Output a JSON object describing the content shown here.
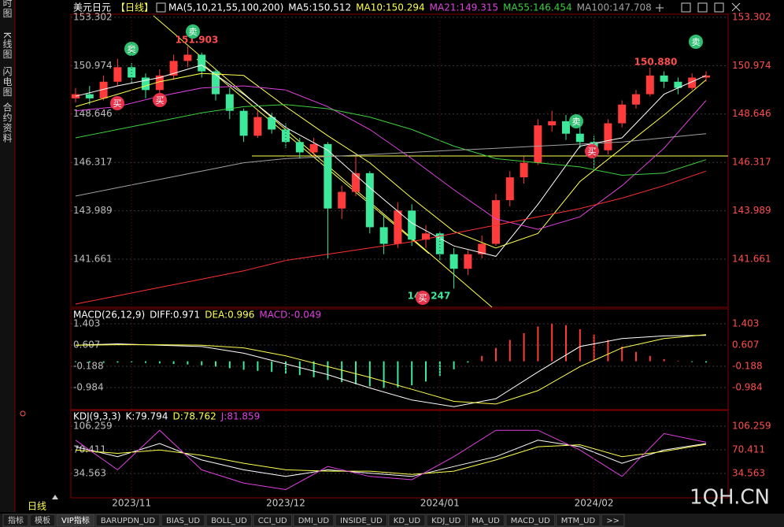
{
  "sidebar": [
    "分时图",
    "K线图",
    "闪电图",
    "合约资料"
  ],
  "header": {
    "symbol": "美元日元",
    "period": "【日线】",
    "ma_title": "MA(5,10,21,55,100,200)",
    "ma_values": [
      "MA5:150.512",
      "MA10:150.294",
      "MA21:149.315",
      "MA55:146.454",
      "MA100:147.708"
    ]
  },
  "main": {
    "type": "candlestick",
    "ylim": [
      139.35,
      153.45
    ],
    "yticks": [
      153.302,
      150.974,
      148.646,
      146.317,
      143.989,
      141.661
    ],
    "candles": [
      [
        149.4,
        149.9,
        149.2,
        149.6
      ],
      [
        149.6,
        150.0,
        149.1,
        149.4
      ],
      [
        149.4,
        150.5,
        149.3,
        150.2
      ],
      [
        150.2,
        151.3,
        150.0,
        150.9
      ],
      [
        150.9,
        151.1,
        150.1,
        150.4
      ],
      [
        150.4,
        150.6,
        149.4,
        149.8
      ],
      [
        149.8,
        150.8,
        149.6,
        150.5
      ],
      [
        150.5,
        151.5,
        150.3,
        151.2
      ],
      [
        151.2,
        151.903,
        150.9,
        151.5
      ],
      [
        151.5,
        151.6,
        150.4,
        150.7
      ],
      [
        150.7,
        150.8,
        149.3,
        149.6
      ],
      [
        149.6,
        149.9,
        148.4,
        148.8
      ],
      [
        148.8,
        148.9,
        147.3,
        147.6
      ],
      [
        147.6,
        148.8,
        147.5,
        148.5
      ],
      [
        148.5,
        148.7,
        147.7,
        147.9
      ],
      [
        147.9,
        148.2,
        147.0,
        147.3
      ],
      [
        147.3,
        147.5,
        146.5,
        146.8
      ],
      [
        146.8,
        147.5,
        146.6,
        147.2
      ],
      [
        147.2,
        147.3,
        141.7,
        144.1
      ],
      [
        144.1,
        145.2,
        143.6,
        144.9
      ],
      [
        144.9,
        146.6,
        144.7,
        145.8
      ],
      [
        145.8,
        145.9,
        142.9,
        143.2
      ],
      [
        143.2,
        143.8,
        141.9,
        142.4
      ],
      [
        142.4,
        144.4,
        142.2,
        144.0
      ],
      [
        144.0,
        144.3,
        142.3,
        142.6
      ],
      [
        142.6,
        143.3,
        142.2,
        142.9
      ],
      [
        142.9,
        143.0,
        141.6,
        141.9
      ],
      [
        141.9,
        142.2,
        140.247,
        141.2
      ],
      [
        141.2,
        142.1,
        140.9,
        141.9
      ],
      [
        141.9,
        142.8,
        141.7,
        142.4
      ],
      [
        142.4,
        144.8,
        142.3,
        144.5
      ],
      [
        144.5,
        145.9,
        144.2,
        145.6
      ],
      [
        145.6,
        146.6,
        145.3,
        146.3
      ],
      [
        146.3,
        148.4,
        146.2,
        148.1
      ],
      [
        148.1,
        148.8,
        147.8,
        148.3
      ],
      [
        148.3,
        148.6,
        147.4,
        147.7
      ],
      [
        147.7,
        148.1,
        147.0,
        147.3
      ],
      [
        147.3,
        147.6,
        146.0,
        146.9
      ],
      [
        146.9,
        148.4,
        146.7,
        148.2
      ],
      [
        148.2,
        149.3,
        148.0,
        149.1
      ],
      [
        149.1,
        149.8,
        148.9,
        149.6
      ],
      [
        149.6,
        150.88,
        149.5,
        150.5
      ],
      [
        150.5,
        150.7,
        149.9,
        150.2
      ],
      [
        150.2,
        150.4,
        149.6,
        149.9
      ],
      [
        149.9,
        150.6,
        149.8,
        150.4
      ],
      [
        150.4,
        150.7,
        150.2,
        150.5
      ]
    ],
    "up_color": "#ff3b3b",
    "down_color": "#3ee89a",
    "ma_index": [
      0,
      3,
      6,
      9,
      12,
      15,
      18,
      21,
      24,
      27,
      30,
      33,
      36,
      39,
      42,
      45
    ],
    "series": [
      {
        "name": "MA5",
        "color": "#ffffff",
        "values": [
          149.5,
          150.0,
          150.4,
          151.0,
          149.6,
          148.0,
          146.9,
          145.1,
          143.4,
          142.3,
          141.8,
          144.3,
          147.1,
          147.5,
          149.6,
          150.5
        ]
      },
      {
        "name": "MA10",
        "color": "#ffff4d",
        "values": [
          149.0,
          149.6,
          150.2,
          150.6,
          150.5,
          149.0,
          147.6,
          146.3,
          144.6,
          143.0,
          142.2,
          142.9,
          145.4,
          147.0,
          148.6,
          150.29
        ]
      },
      {
        "name": "MA21",
        "color": "#e040e0",
        "values": [
          148.8,
          149.0,
          149.5,
          149.9,
          150.0,
          149.8,
          149.0,
          147.9,
          146.5,
          145.0,
          143.6,
          143.1,
          143.7,
          145.2,
          147.0,
          149.3
        ]
      },
      {
        "name": "MA55",
        "color": "#3ecf3e",
        "values": [
          147.5,
          147.9,
          148.3,
          148.7,
          149.0,
          149.1,
          148.9,
          148.5,
          147.9,
          147.1,
          146.5,
          146.3,
          146.1,
          145.7,
          145.8,
          146.45
        ]
      },
      {
        "name": "MA100",
        "color": "#a0a0a0",
        "values": [
          144.7,
          145.1,
          145.5,
          145.9,
          146.3,
          146.5,
          146.6,
          146.7,
          146.8,
          146.9,
          147.0,
          147.1,
          147.2,
          147.3,
          147.5,
          147.7
        ]
      },
      {
        "name": "MA200",
        "color": "#ff3030",
        "values": [
          139.5,
          139.9,
          140.3,
          140.7,
          141.1,
          141.6,
          141.9,
          142.2,
          142.5,
          142.9,
          143.3,
          143.7,
          144.1,
          144.6,
          145.2,
          145.9
        ]
      }
    ],
    "annotations": [
      151.903,
      {
        "value": 150.88,
        "label": "150.880"
      },
      140.247
    ],
    "signals": [
      "卖",
      "卖",
      "卖",
      "卖",
      "买",
      "买",
      "买",
      "买"
    ]
  },
  "macd": {
    "type": "macd",
    "title": "MACD(26,12,9)",
    "labels": [
      "DIFF:0.971",
      "DEA:0.996",
      "MACD:-0.049"
    ],
    "ylim": [
      -1.81,
      1.58
    ],
    "yticks": [
      1.403,
      0.607,
      -0.188,
      -0.984
    ],
    "histogram": [
      -0.03,
      -0.05,
      -0.06,
      -0.05,
      -0.04,
      -0.06,
      -0.08,
      -0.1,
      -0.12,
      -0.15,
      -0.2,
      -0.26,
      -0.32,
      -0.36,
      -0.4,
      -0.46,
      -0.52,
      -0.6,
      -0.7,
      -0.78,
      -0.86,
      -0.94,
      -1.0,
      -0.98,
      -0.9,
      -0.76,
      -0.55,
      -0.3,
      -0.05,
      0.2,
      0.5,
      0.8,
      1.05,
      1.3,
      1.4,
      1.35,
      1.2,
      1.0,
      0.8,
      0.55,
      0.35,
      0.2,
      0.08,
      0.02,
      -0.03,
      -0.049
    ],
    "series": [
      {
        "name": "DIFF",
        "color": "#ffffff",
        "values": [
          0.6,
          0.65,
          0.6,
          0.55,
          0.3,
          -0.1,
          -0.5,
          -1.0,
          -1.45,
          -1.7,
          -1.4,
          -0.4,
          0.55,
          0.85,
          0.95,
          0.971
        ]
      },
      {
        "name": "DEA",
        "color": "#ffff4d",
        "values": [
          0.6,
          0.62,
          0.62,
          0.6,
          0.5,
          0.2,
          -0.2,
          -0.6,
          -1.05,
          -1.5,
          -1.6,
          -1.1,
          -0.2,
          0.5,
          0.85,
          0.996
        ]
      }
    ]
  },
  "kdj": {
    "type": "line",
    "title": "KDJ(9,3,3)",
    "labels": [
      "K:79.794",
      "D:78.762",
      "J:81.859"
    ],
    "ylim": [
      -2.5,
      114.6
    ],
    "yticks": [
      106.259,
      70.411,
      34.563
    ],
    "series": [
      {
        "name": "K",
        "color": "#ffffff",
        "values": [
          75,
          60,
          80,
          55,
          40,
          30,
          40,
          35,
          30,
          45,
          60,
          85,
          75,
          50,
          70,
          79.794
        ]
      },
      {
        "name": "D",
        "color": "#ffff4d",
        "values": [
          70,
          65,
          70,
          62,
          50,
          40,
          38,
          38,
          33,
          38,
          55,
          75,
          78,
          60,
          68,
          78.762
        ]
      },
      {
        "name": "J",
        "color": "#e040e0",
        "values": [
          85,
          40,
          100,
          40,
          20,
          10,
          45,
          30,
          25,
          60,
          100,
          100,
          70,
          30,
          95,
          81.859
        ]
      }
    ]
  },
  "x_axis": {
    "categories": [
      null,
      null,
      null,
      null,
      "2023/11",
      null,
      null,
      null,
      null,
      null,
      null,
      null,
      null,
      null,
      null,
      "2023/12",
      null,
      null,
      null,
      null,
      null,
      null,
      null,
      null,
      null,
      null,
      "2024/01",
      null,
      null,
      null,
      null,
      null,
      null,
      null,
      null,
      null,
      null,
      "2024/02",
      null,
      null,
      null,
      null,
      null,
      null,
      null,
      null
    ]
  },
  "period_tab": "日线",
  "tabs": [
    "指标",
    "模板",
    "VIP指标",
    "BARUPDN_UD",
    "BIAS_UD",
    "BOLL_UD",
    "CCI_UD",
    "DMI_UD",
    "INSIDE_UD",
    "KD_UD",
    "KDJ_UD",
    "MA_UD",
    "MACD_UD",
    "MTM_UD",
    ">>"
  ],
  "watermark": "1QH.CN"
}
